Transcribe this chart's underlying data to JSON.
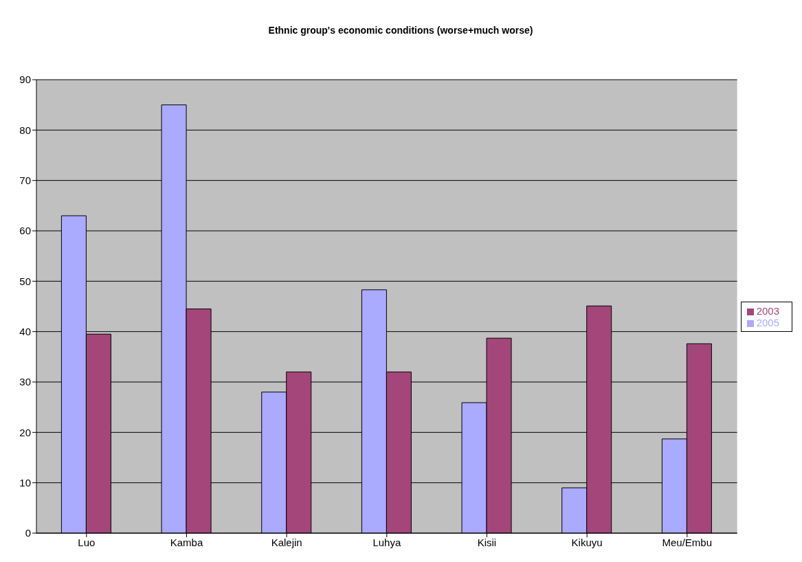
{
  "chart_data": {
    "type": "bar",
    "title": "Ethnic group's economic conditions (worse+much worse)",
    "categories": [
      "Luo",
      "Kamba",
      "Kalejin",
      "Luhya",
      "Kisii",
      "Kikuyu",
      "Meu/Embu"
    ],
    "series": [
      {
        "name": "2005",
        "color": "#aaaaff",
        "values": [
          63,
          85,
          28,
          48.3,
          25.9,
          9,
          18.7
        ]
      },
      {
        "name": "2003",
        "color": "#a4467a",
        "values": [
          39.5,
          44.5,
          32,
          32,
          38.7,
          45.1,
          37.6
        ]
      }
    ],
    "ylim": [
      0,
      90
    ],
    "yticks": [
      0,
      10,
      20,
      30,
      40,
      50,
      60,
      70,
      80,
      90
    ],
    "grid": "y",
    "legend": "right"
  }
}
